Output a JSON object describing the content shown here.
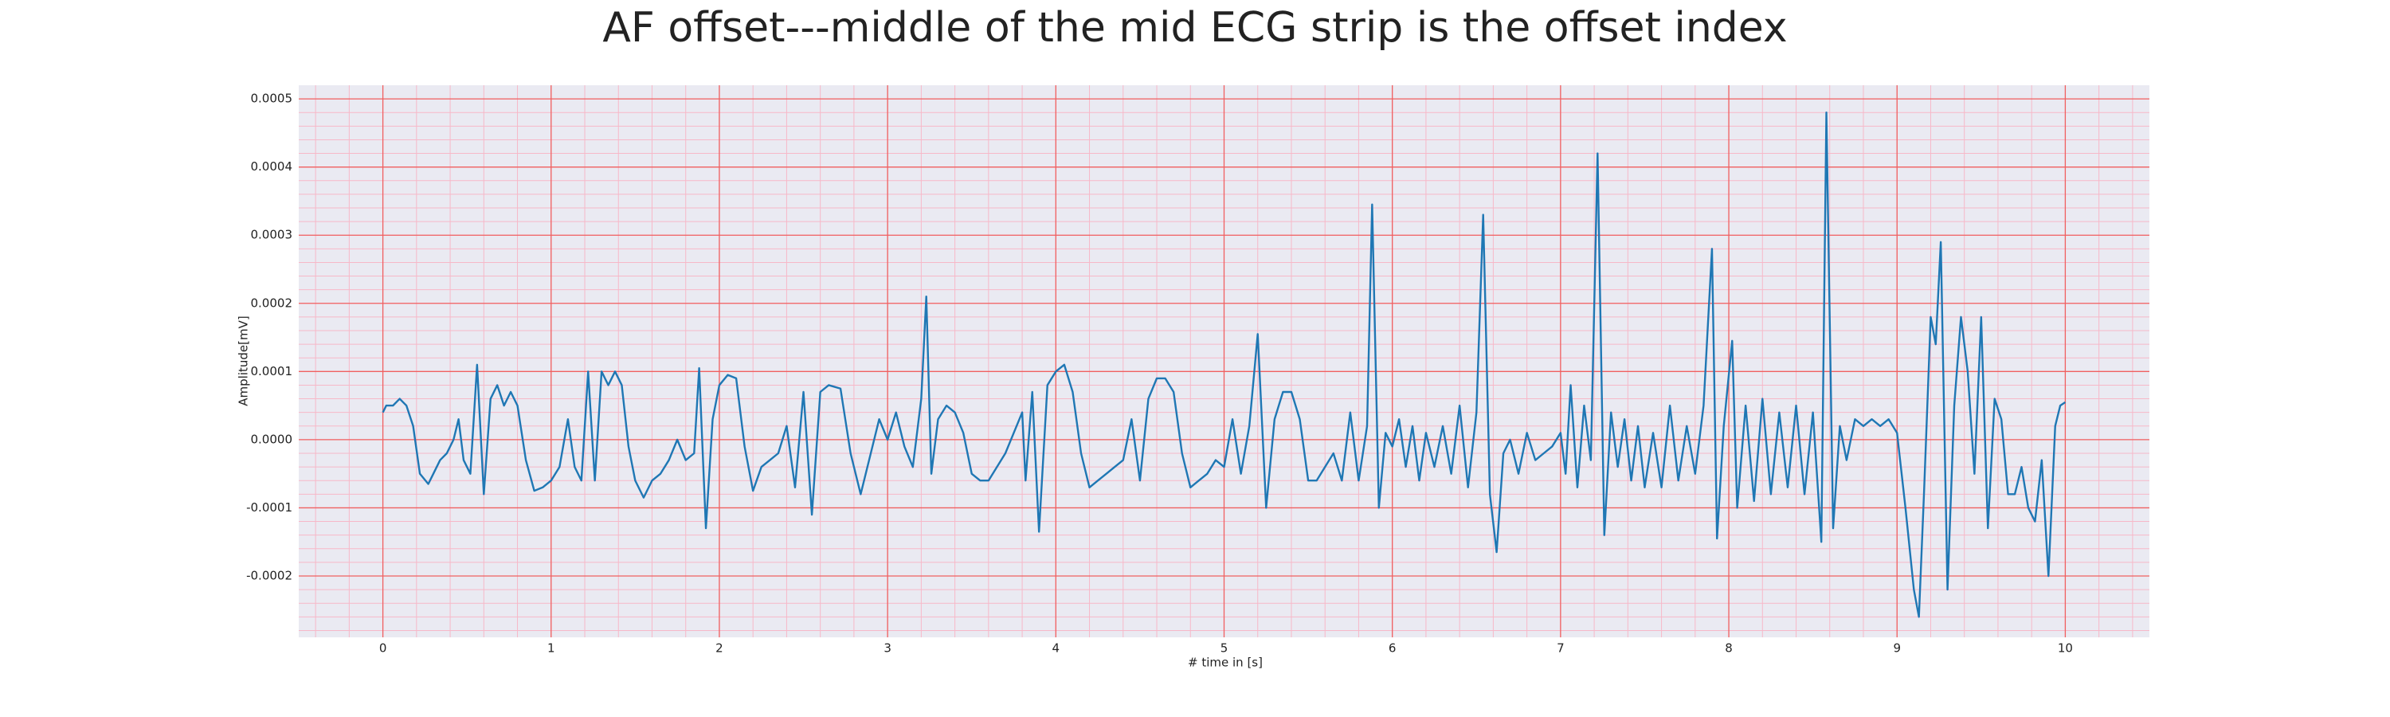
{
  "chart_data": {
    "type": "line",
    "title": "AF offset---middle of the mid ECG strip is the offset index",
    "x_label": "# time in [s]",
    "y_label": "Amplitude[mV]",
    "color": "#1f77b4",
    "grid": true,
    "minor_grid": true,
    "xlim": [
      -0.5,
      10.5
    ],
    "ylim": [
      -0.00029,
      0.00052
    ],
    "xticks": [
      0,
      1,
      2,
      3,
      4,
      5,
      6,
      7,
      8,
      9,
      10
    ],
    "yticks": [
      -0.0002,
      -0.0001,
      {
        "value": 0,
        "label": "0.0000"
      },
      0.0001,
      0.0002,
      0.0003,
      0.0004,
      0.0005
    ],
    "x": [
      0.0,
      0.02,
      0.06,
      0.1,
      0.14,
      0.18,
      0.22,
      0.27,
      0.3,
      0.34,
      0.38,
      0.42,
      0.45,
      0.48,
      0.52,
      0.56,
      0.6,
      0.64,
      0.68,
      0.72,
      0.76,
      0.8,
      0.85,
      0.9,
      0.95,
      1.0,
      1.05,
      1.1,
      1.14,
      1.18,
      1.22,
      1.26,
      1.3,
      1.34,
      1.38,
      1.42,
      1.46,
      1.5,
      1.55,
      1.6,
      1.65,
      1.7,
      1.75,
      1.8,
      1.85,
      1.88,
      1.92,
      1.96,
      2.0,
      2.05,
      2.1,
      2.15,
      2.2,
      2.25,
      2.3,
      2.35,
      2.4,
      2.45,
      2.5,
      2.55,
      2.6,
      2.65,
      2.72,
      2.78,
      2.84,
      2.9,
      2.95,
      3.0,
      3.05,
      3.1,
      3.15,
      3.2,
      3.23,
      3.26,
      3.3,
      3.35,
      3.4,
      3.45,
      3.5,
      3.55,
      3.6,
      3.65,
      3.7,
      3.75,
      3.8,
      3.82,
      3.86,
      3.9,
      3.95,
      4.0,
      4.05,
      4.1,
      4.15,
      4.2,
      4.25,
      4.3,
      4.35,
      4.4,
      4.45,
      4.5,
      4.55,
      4.6,
      4.65,
      4.7,
      4.75,
      4.8,
      4.85,
      4.9,
      4.95,
      5.0,
      5.05,
      5.1,
      5.15,
      5.2,
      5.25,
      5.3,
      5.35,
      5.4,
      5.45,
      5.5,
      5.55,
      5.6,
      5.65,
      5.7,
      5.75,
      5.8,
      5.85,
      5.88,
      5.92,
      5.96,
      6.0,
      6.04,
      6.08,
      6.12,
      6.16,
      6.2,
      6.25,
      6.3,
      6.35,
      6.4,
      6.45,
      6.5,
      6.54,
      6.58,
      6.62,
      6.66,
      6.7,
      6.75,
      6.8,
      6.85,
      6.9,
      6.95,
      7.0,
      7.03,
      7.06,
      7.1,
      7.14,
      7.18,
      7.22,
      7.26,
      7.3,
      7.34,
      7.38,
      7.42,
      7.46,
      7.5,
      7.55,
      7.6,
      7.65,
      7.7,
      7.75,
      7.8,
      7.85,
      7.9,
      7.93,
      7.97,
      8.02,
      8.05,
      8.1,
      8.15,
      8.2,
      8.25,
      8.3,
      8.35,
      8.4,
      8.45,
      8.5,
      8.55,
      8.58,
      8.62,
      8.66,
      8.7,
      8.75,
      8.8,
      8.85,
      8.9,
      8.95,
      9.0,
      9.05,
      9.1,
      9.13,
      9.16,
      9.2,
      9.23,
      9.26,
      9.3,
      9.34,
      9.38,
      9.42,
      9.46,
      9.5,
      9.54,
      9.58,
      9.62,
      9.66,
      9.7,
      9.74,
      9.78,
      9.82,
      9.86,
      9.9,
      9.94,
      9.97,
      10.0
    ],
    "values": [
      4e-05,
      5e-05,
      5e-05,
      6e-05,
      5e-05,
      2e-05,
      -5e-05,
      -6.5e-05,
      -5e-05,
      -3e-05,
      -2e-05,
      0.0,
      3e-05,
      -3e-05,
      -5e-05,
      0.00011,
      -8e-05,
      6e-05,
      8e-05,
      5e-05,
      7e-05,
      5e-05,
      -3e-05,
      -7.5e-05,
      -7e-05,
      -6e-05,
      -4e-05,
      3e-05,
      -4e-05,
      -6e-05,
      0.0001,
      -6e-05,
      0.0001,
      8e-05,
      0.0001,
      8e-05,
      -1e-05,
      -6e-05,
      -8.5e-05,
      -6e-05,
      -5e-05,
      -3e-05,
      0.0,
      -3e-05,
      -2e-05,
      0.000105,
      -0.00013,
      3e-05,
      8e-05,
      9.5e-05,
      9e-05,
      -1e-05,
      -7.5e-05,
      -4e-05,
      -3e-05,
      -2e-05,
      2e-05,
      -7e-05,
      7e-05,
      -0.00011,
      7e-05,
      8e-05,
      7.5e-05,
      -2e-05,
      -8e-05,
      -2e-05,
      3e-05,
      0.0,
      4e-05,
      -1e-05,
      -4e-05,
      6e-05,
      0.00021,
      -5e-05,
      3e-05,
      5e-05,
      4e-05,
      1e-05,
      -5e-05,
      -6e-05,
      -6e-05,
      -4e-05,
      -2e-05,
      1e-05,
      4e-05,
      -6e-05,
      7e-05,
      -0.000135,
      8e-05,
      0.0001,
      0.00011,
      7e-05,
      -2e-05,
      -7e-05,
      -6e-05,
      -5e-05,
      -4e-05,
      -3e-05,
      3e-05,
      -6e-05,
      6e-05,
      9e-05,
      9e-05,
      7e-05,
      -2e-05,
      -7e-05,
      -6e-05,
      -5e-05,
      -3e-05,
      -4e-05,
      3e-05,
      -5e-05,
      2e-05,
      0.000155,
      -0.0001,
      3e-05,
      7e-05,
      7e-05,
      3e-05,
      -6e-05,
      -6e-05,
      -4e-05,
      -2e-05,
      -6e-05,
      4e-05,
      -6e-05,
      2e-05,
      0.000345,
      -0.0001,
      1e-05,
      -1e-05,
      3e-05,
      -4e-05,
      2e-05,
      -6e-05,
      1e-05,
      -4e-05,
      2e-05,
      -5e-05,
      5e-05,
      -7e-05,
      4e-05,
      0.00033,
      -8e-05,
      -0.000165,
      -2e-05,
      0.0,
      -5e-05,
      1e-05,
      -3e-05,
      -2e-05,
      -1e-05,
      1e-05,
      -5e-05,
      8e-05,
      -7e-05,
      5e-05,
      -3e-05,
      0.00042,
      -0.00014,
      4e-05,
      -4e-05,
      3e-05,
      -6e-05,
      2e-05,
      -7e-05,
      1e-05,
      -7e-05,
      5e-05,
      -6e-05,
      2e-05,
      -5e-05,
      5e-05,
      0.00028,
      -0.000145,
      2e-05,
      0.000145,
      -0.0001,
      5e-05,
      -9e-05,
      6e-05,
      -8e-05,
      4e-05,
      -7e-05,
      5e-05,
      -8e-05,
      4e-05,
      -0.00015,
      0.00048,
      -0.00013,
      2e-05,
      -3e-05,
      3e-05,
      2e-05,
      3e-05,
      2e-05,
      3e-05,
      1e-05,
      -0.0001,
      -0.00022,
      -0.00026,
      -8e-05,
      0.00018,
      0.00014,
      0.00029,
      -0.00022,
      5e-05,
      0.00018,
      0.0001,
      -5e-05,
      0.00018,
      -0.00013,
      6e-05,
      3e-05,
      -8e-05,
      -8e-05,
      -4e-05,
      -0.0001,
      -0.00012,
      -3e-05,
      -0.0002,
      2e-05,
      5e-05,
      5.5e-05
    ]
  }
}
